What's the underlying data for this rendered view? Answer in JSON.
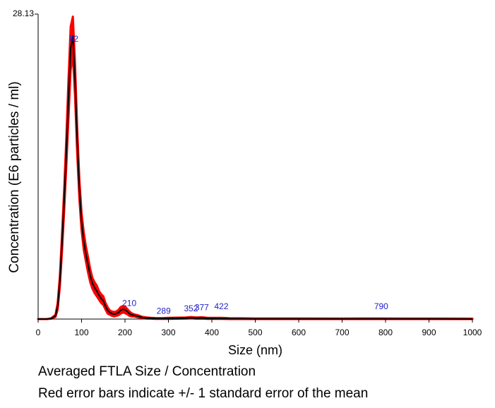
{
  "chart_data": {
    "type": "line",
    "title": "",
    "xlabel": "Size (nm)",
    "ylabel": "Concentration (E6 particles / ml)",
    "xlim": [
      0,
      1000
    ],
    "ylim": [
      0,
      28.13
    ],
    "y_top_label": "28.13",
    "x_ticks": [
      0,
      100,
      200,
      300,
      400,
      500,
      600,
      700,
      800,
      900,
      1000
    ],
    "x_tick_labels": [
      "0",
      "100",
      "200",
      "300",
      "400",
      "500",
      "600",
      "700",
      "800",
      "900",
      "1000"
    ],
    "grid": false,
    "colors": {
      "mean": "#000000",
      "error": "#ff0000",
      "peak_label": "#2222cc"
    },
    "series": [
      {
        "role": "mean",
        "x": [
          0,
          20,
          30,
          40,
          45,
          50,
          55,
          60,
          65,
          70,
          75,
          80,
          85,
          90,
          95,
          100,
          105,
          110,
          115,
          120,
          125,
          130,
          135,
          140,
          145,
          150,
          155,
          160,
          165,
          170,
          175,
          180,
          185,
          190,
          195,
          200,
          205,
          210,
          215,
          220,
          225,
          230,
          240,
          250,
          260,
          270,
          280,
          290,
          300,
          320,
          340,
          352,
          365,
          377,
          390,
          410,
          422,
          440,
          470,
          500,
          600,
          700,
          790,
          850,
          900,
          1000
        ],
        "y": [
          0,
          0,
          0.05,
          0.3,
          1.2,
          3.5,
          7,
          11,
          15.5,
          20.5,
          25,
          26.1,
          22,
          16.5,
          12,
          9,
          7.2,
          6,
          5,
          4,
          3.3,
          2.9,
          2.6,
          2.2,
          1.9,
          1.7,
          1.2,
          0.8,
          0.6,
          0.5,
          0.45,
          0.5,
          0.6,
          0.8,
          0.9,
          0.85,
          0.7,
          0.5,
          0.4,
          0.35,
          0.3,
          0.25,
          0.15,
          0.1,
          0.08,
          0.06,
          0.05,
          0.06,
          0.07,
          0.08,
          0.1,
          0.13,
          0.09,
          0.11,
          0.07,
          0.06,
          0.06,
          0.04,
          0.03,
          0.02,
          0.02,
          0.01,
          0.02,
          0.01,
          0.01,
          0
        ]
      },
      {
        "role": "error",
        "sem": [
          0,
          0,
          0.02,
          0.1,
          0.3,
          0.5,
          0.8,
          1.0,
          1.3,
          1.8,
          2.0,
          1.8,
          1.5,
          1.2,
          0.9,
          0.8,
          0.8,
          0.7,
          0.7,
          0.6,
          0.5,
          0.5,
          0.5,
          0.4,
          0.4,
          0.4,
          0.3,
          0.3,
          0.2,
          0.2,
          0.2,
          0.2,
          0.25,
          0.3,
          0.3,
          0.3,
          0.25,
          0.2,
          0.15,
          0.1,
          0.1,
          0.1,
          0.05,
          0.05,
          0.04,
          0.04,
          0.04,
          0.04,
          0.05,
          0.05,
          0.05,
          0.06,
          0.05,
          0.06,
          0.05,
          0.05,
          0.05,
          0.04,
          0.04,
          0.04,
          0.04,
          0.04,
          0.04,
          0.04,
          0.04,
          0.04
        ]
      }
    ],
    "annotations": [
      {
        "x": 82,
        "y": 25.6,
        "text": "82"
      },
      {
        "x": 210,
        "y": 1.2,
        "text": "210"
      },
      {
        "x": 289,
        "y": 0.5,
        "text": "289"
      },
      {
        "x": 352,
        "y": 0.7,
        "text": "352"
      },
      {
        "x": 377,
        "y": 0.8,
        "text": "377"
      },
      {
        "x": 422,
        "y": 0.9,
        "text": "422"
      },
      {
        "x": 790,
        "y": 0.9,
        "text": "790"
      }
    ]
  },
  "captions": {
    "line1": "Averaged FTLA Size / Concentration",
    "line2": "Red error bars indicate +/- 1 standard error of the mean"
  }
}
